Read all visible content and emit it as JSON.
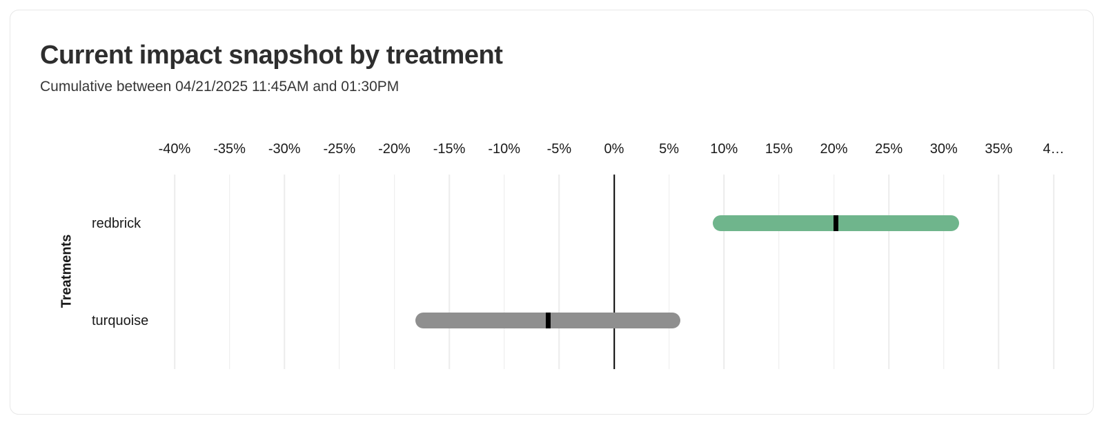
{
  "chart_data": {
    "type": "bar",
    "subtype": "horizontal-interval-with-point-estimate",
    "title": "Current impact snapshot by treatment",
    "subtitle": "Cumulative between 04/21/2025 11:45AM and 01:30PM",
    "ylabel": "Treatments",
    "xlabel": "",
    "xlim": [
      -40,
      40
    ],
    "grid": true,
    "legend": "none",
    "x_ticks": [
      {
        "value": -40,
        "label": "-40%"
      },
      {
        "value": -35,
        "label": "-35%"
      },
      {
        "value": -30,
        "label": "-30%"
      },
      {
        "value": -25,
        "label": "-25%"
      },
      {
        "value": -20,
        "label": "-20%"
      },
      {
        "value": -15,
        "label": "-15%"
      },
      {
        "value": -10,
        "label": "-10%"
      },
      {
        "value": -5,
        "label": "-5%"
      },
      {
        "value": 0,
        "label": "0%"
      },
      {
        "value": 5,
        "label": "5%"
      },
      {
        "value": 10,
        "label": "10%"
      },
      {
        "value": 15,
        "label": "15%"
      },
      {
        "value": 20,
        "label": "20%"
      },
      {
        "value": 25,
        "label": "25%"
      },
      {
        "value": 30,
        "label": "30%"
      },
      {
        "value": 35,
        "label": "35%"
      },
      {
        "value": 40,
        "label": "4…"
      }
    ],
    "zero_line_value": 0,
    "categories": [
      "redbrick",
      "turquoise"
    ],
    "rows": [
      {
        "label": "redbrick",
        "lower": 9.0,
        "upper": 31.4,
        "point": 20.2,
        "unit": "%",
        "color": "#6fb58c"
      },
      {
        "label": "turquoise",
        "lower": -18.1,
        "upper": 6.0,
        "point": -6.0,
        "unit": "%",
        "color": "#8f8f8f"
      }
    ],
    "colors": {
      "gridline": "#ececec",
      "zero_line": "#000000",
      "point_marker": "#000000",
      "redbrick_bar": "#6fb58c",
      "turquoise_bar": "#8f8f8f"
    }
  }
}
